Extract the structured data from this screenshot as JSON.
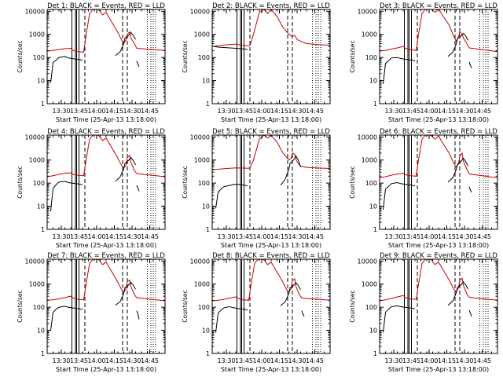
{
  "chart_data": {
    "type": "line",
    "grid": false,
    "x_tick_labels": [
      "13:30",
      "13:45",
      "14:00",
      "14:15",
      "14:30",
      "14:45"
    ],
    "x_ticks_min": [
      12,
      27,
      42,
      57,
      72,
      87
    ],
    "xlim_min": [
      0,
      100
    ],
    "y_scale": "log",
    "ylim": [
      1,
      12000
    ],
    "y_tick_values": [
      1,
      10,
      100,
      1000,
      10000
    ],
    "y_tick_labels": [
      "1",
      "10",
      "100",
      "1000",
      "10000"
    ],
    "ylabel": "Counts/sec",
    "xlabel": "Start Time (25-Apr-13 13:18:00)",
    "series_colors": {
      "events": "#000000",
      "lld": "#cc0000"
    },
    "series_names": [
      "Events",
      "LLD"
    ],
    "panels": [
      {
        "title": "Det 1: BLACK = Events, RED = LLD",
        "solid_lines_min": [
          21,
          24,
          25,
          27
        ],
        "dashed_lines_min": [
          32,
          64,
          68
        ],
        "dotted_lines_min": [
          85,
          88,
          90,
          92
        ],
        "lld": {
          "x": [
            0,
            3,
            10,
            15,
            20,
            22,
            26,
            31,
            33,
            36,
            40,
            44,
            47,
            50,
            54,
            59,
            63,
            65,
            67,
            68,
            70,
            71,
            74,
            76,
            100
          ],
          "y": [
            190,
            195,
            220,
            240,
            250,
            200,
            180,
            170,
            900,
            8000,
            14000,
            11000,
            7000,
            9000,
            4000,
            1500,
            600,
            400,
            600,
            1000,
            1300,
            700,
            400,
            250,
            200
          ]
        },
        "events": {
          "x": [
            3,
            5,
            8,
            10,
            15,
            18,
            24,
            28,
            30,
            null,
            58,
            62,
            65,
            66,
            69,
            71,
            73,
            75,
            null,
            76,
            77,
            78
          ],
          "y": [
            8,
            60,
            80,
            100,
            110,
            95,
            85,
            80,
            75,
            null,
            120,
            180,
            400,
            700,
            900,
            1200,
            900,
            600,
            null,
            70,
            50,
            40
          ]
        }
      },
      {
        "title": "Det 2: BLACK = Events, RED = LLD",
        "solid_lines_min": [
          21,
          24,
          25,
          27
        ],
        "dashed_lines_min": [
          32,
          64,
          68
        ],
        "dotted_lines_min": [
          85,
          88,
          90,
          92
        ],
        "lld": {
          "x": [
            0,
            5,
            10,
            15,
            20,
            25,
            30,
            32,
            35,
            40,
            44,
            47,
            50,
            55,
            60,
            65,
            68,
            70,
            72,
            75,
            80,
            90,
            100
          ],
          "y": [
            300,
            320,
            350,
            360,
            380,
            340,
            320,
            330,
            1000,
            9000,
            12000,
            8000,
            12000,
            6000,
            2000,
            1000,
            800,
            900,
            600,
            500,
            400,
            360,
            340
          ]
        },
        "events": {
          "x": [
            2,
            5,
            10,
            15,
            20,
            25,
            28,
            30
          ],
          "y": [
            300,
            280,
            270,
            260,
            250,
            240,
            230,
            220
          ]
        }
      },
      {
        "title": "Det 3: BLACK = Events, RED = LLD",
        "solid_lines_min": [
          21,
          24,
          25,
          27
        ],
        "dashed_lines_min": [
          32,
          64,
          68
        ],
        "dotted_lines_min": [
          85,
          88,
          90,
          92
        ],
        "lld": {
          "x": [
            0,
            5,
            10,
            15,
            20,
            22,
            26,
            31,
            33,
            36,
            40,
            44,
            47,
            50,
            54,
            59,
            63,
            65,
            67,
            68,
            70,
            71,
            74,
            76,
            100
          ],
          "y": [
            190,
            200,
            230,
            260,
            300,
            250,
            220,
            200,
            1000,
            8000,
            15000,
            12000,
            9000,
            13000,
            6000,
            2500,
            800,
            500,
            800,
            1300,
            1000,
            700,
            400,
            260,
            180
          ]
        },
        "events": {
          "x": [
            3,
            5,
            8,
            10,
            15,
            18,
            24,
            28,
            30,
            null,
            58,
            62,
            65,
            66,
            69,
            71,
            73,
            75,
            null,
            76,
            77,
            78
          ],
          "y": [
            7,
            55,
            75,
            95,
            100,
            90,
            80,
            75,
            70,
            null,
            110,
            170,
            380,
            650,
            850,
            1100,
            850,
            550,
            null,
            65,
            45,
            35
          ]
        }
      },
      {
        "title": "Det 4: BLACK = Events, RED = LLD",
        "solid_lines_min": [
          21,
          24,
          25,
          27
        ],
        "dashed_lines_min": [
          32,
          64,
          68
        ],
        "dotted_lines_min": [
          85,
          88,
          90,
          92
        ],
        "lld": {
          "x": [
            0,
            5,
            10,
            15,
            20,
            22,
            26,
            31,
            33,
            36,
            40,
            44,
            47,
            50,
            54,
            59,
            63,
            65,
            67,
            68,
            70,
            71,
            74,
            76,
            100
          ],
          "y": [
            190,
            210,
            240,
            270,
            280,
            240,
            220,
            210,
            1000,
            8000,
            14000,
            11000,
            7000,
            9000,
            4000,
            1500,
            600,
            450,
            600,
            1300,
            1600,
            800,
            350,
            260,
            190
          ]
        },
        "events": {
          "x": [
            3,
            5,
            8,
            10,
            15,
            18,
            24,
            28,
            30,
            null,
            58,
            62,
            65,
            66,
            69,
            71,
            73,
            75,
            null,
            76,
            77,
            78
          ],
          "y": [
            6,
            60,
            90,
            110,
            120,
            105,
            95,
            90,
            85,
            null,
            120,
            190,
            420,
            720,
            950,
            1300,
            950,
            620,
            null,
            80,
            60,
            45
          ]
        }
      },
      {
        "title": "Det 5: BLACK = Events, RED = LLD",
        "solid_lines_min": [
          21,
          24,
          25,
          27
        ],
        "dashed_lines_min": [
          32,
          64,
          68
        ],
        "dotted_lines_min": [
          85,
          88,
          90,
          92
        ],
        "lld": {
          "x": [
            0,
            5,
            10,
            15,
            20,
            25,
            30,
            32,
            35,
            40,
            44,
            47,
            50,
            55,
            60,
            65,
            67,
            68,
            70,
            71,
            73,
            75,
            80,
            90,
            100
          ],
          "y": [
            380,
            400,
            420,
            440,
            460,
            450,
            440,
            450,
            1000,
            8000,
            12000,
            9000,
            12000,
            6000,
            2000,
            1000,
            1200,
            2000,
            1800,
            1100,
            700,
            550,
            480,
            450,
            430
          ]
        },
        "events": {
          "x": [
            3,
            5,
            8,
            10,
            15,
            20,
            25,
            28,
            30,
            null,
            58,
            62,
            65,
            66,
            69,
            71,
            73,
            75
          ],
          "y": [
            8,
            40,
            60,
            70,
            80,
            90,
            85,
            80,
            75,
            null,
            80,
            150,
            400,
            700,
            1000,
            1500,
            1000,
            500
          ]
        }
      },
      {
        "title": "Det 6: BLACK = Events, RED = LLD",
        "solid_lines_min": [
          21,
          24,
          25,
          27
        ],
        "dashed_lines_min": [
          32,
          64,
          68
        ],
        "dotted_lines_min": [
          85,
          88,
          90,
          92
        ],
        "lld": {
          "x": [
            0,
            5,
            10,
            15,
            20,
            22,
            26,
            31,
            33,
            36,
            40,
            44,
            47,
            50,
            54,
            59,
            63,
            65,
            67,
            68,
            70,
            71,
            74,
            76,
            100
          ],
          "y": [
            170,
            190,
            220,
            250,
            270,
            230,
            210,
            200,
            1000,
            8000,
            14000,
            11000,
            8000,
            11000,
            5000,
            2000,
            700,
            500,
            700,
            1500,
            2000,
            900,
            400,
            250,
            170
          ]
        },
        "events": {
          "x": [
            3,
            5,
            8,
            10,
            15,
            18,
            24,
            28,
            30,
            null,
            58,
            62,
            65,
            66,
            69,
            71,
            73,
            75,
            null,
            76,
            77,
            78
          ],
          "y": [
            7,
            55,
            75,
            95,
            105,
            95,
            85,
            80,
            75,
            null,
            110,
            170,
            380,
            650,
            850,
            1200,
            850,
            550,
            null,
            70,
            50,
            40
          ]
        }
      },
      {
        "title": "Det 7: BLACK = Events, RED = LLD",
        "solid_lines_min": [
          21,
          24,
          25,
          27
        ],
        "dashed_lines_min": [
          32,
          64,
          68
        ],
        "dotted_lines_min": [
          85,
          88,
          90,
          92
        ],
        "lld": {
          "x": [
            0,
            5,
            10,
            15,
            20,
            22,
            26,
            31,
            33,
            36,
            40,
            44,
            47,
            50,
            54,
            59,
            63,
            65,
            67,
            68,
            70,
            71,
            74,
            76,
            100
          ],
          "y": [
            200,
            210,
            230,
            260,
            300,
            250,
            220,
            210,
            1000,
            8000,
            14000,
            11000,
            7000,
            9000,
            4000,
            1500,
            600,
            450,
            600,
            1300,
            1500,
            800,
            350,
            260,
            190
          ]
        },
        "events": {
          "x": [
            3,
            5,
            8,
            10,
            15,
            18,
            24,
            28,
            30,
            null,
            58,
            62,
            65,
            66,
            69,
            71,
            73,
            75,
            null,
            76,
            77,
            78
          ],
          "y": [
            10,
            60,
            85,
            100,
            110,
            100,
            90,
            85,
            80,
            null,
            120,
            180,
            400,
            700,
            900,
            1200,
            900,
            600,
            null,
            70,
            50,
            30
          ]
        }
      },
      {
        "title": "Det 8: BLACK = Events, RED = LLD",
        "solid_lines_min": [
          21,
          24,
          25,
          27
        ],
        "dashed_lines_min": [
          32,
          64,
          68
        ],
        "dotted_lines_min": [
          85,
          88,
          90,
          92
        ],
        "lld": {
          "x": [
            0,
            5,
            10,
            15,
            20,
            22,
            26,
            31,
            33,
            36,
            40,
            44,
            47,
            50,
            54,
            59,
            63,
            65,
            67,
            68,
            70,
            71,
            74,
            76,
            100
          ],
          "y": [
            190,
            200,
            220,
            250,
            280,
            240,
            210,
            200,
            1000,
            8000,
            14000,
            11000,
            7000,
            9000,
            4000,
            1500,
            600,
            450,
            650,
            1400,
            1700,
            800,
            350,
            250,
            200
          ]
        },
        "events": {
          "x": [
            3,
            5,
            8,
            10,
            15,
            18,
            24,
            28,
            30,
            null,
            58,
            62,
            65,
            66,
            69,
            71,
            73,
            75,
            null,
            76,
            77,
            78
          ],
          "y": [
            8,
            55,
            80,
            95,
            105,
            95,
            85,
            80,
            75,
            null,
            115,
            175,
            390,
            680,
            880,
            1150,
            880,
            580,
            null,
            70,
            50,
            40
          ]
        }
      },
      {
        "title": "Det 9: BLACK = Events, RED = LLD",
        "solid_lines_min": [
          21,
          24,
          25,
          27
        ],
        "dashed_lines_min": [
          32,
          64,
          68
        ],
        "dotted_lines_min": [
          85,
          88,
          90,
          92
        ],
        "lld": {
          "x": [
            0,
            5,
            10,
            15,
            20,
            22,
            26,
            31,
            33,
            36,
            40,
            44,
            47,
            50,
            54,
            59,
            63,
            65,
            67,
            68,
            70,
            71,
            74,
            76,
            100
          ],
          "y": [
            190,
            210,
            240,
            280,
            320,
            260,
            230,
            220,
            1000,
            8000,
            14000,
            11000,
            7000,
            9000,
            4000,
            1500,
            600,
            450,
            700,
            1500,
            1800,
            900,
            380,
            270,
            200
          ]
        },
        "events": {
          "x": [
            3,
            5,
            8,
            10,
            15,
            18,
            24,
            28,
            30,
            null,
            58,
            62,
            65,
            66,
            69,
            71,
            73,
            75,
            null,
            76,
            77,
            78
          ],
          "y": [
            8,
            60,
            85,
            105,
            115,
            105,
            95,
            90,
            85,
            null,
            120,
            185,
            410,
            720,
            930,
            1250,
            930,
            620,
            null,
            75,
            55,
            40
          ]
        }
      }
    ]
  }
}
